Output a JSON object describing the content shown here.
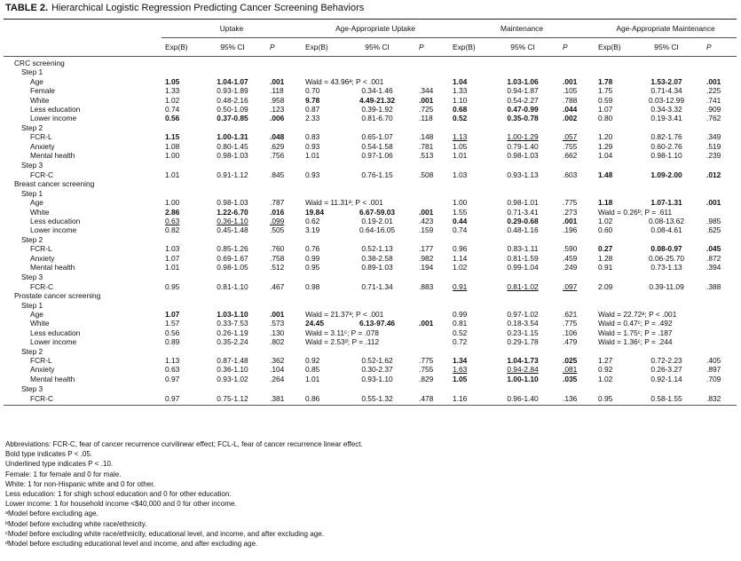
{
  "title": {
    "label": "TABLE 2.",
    "text": "Hierarchical Logistic Regression Predicting Cancer Screening Behaviors"
  },
  "groups": [
    "Uptake",
    "Age-Appropriate Uptake",
    "Maintenance",
    "Age-Appropriate Maintenance"
  ],
  "subheaders": [
    "Exp(B)",
    "95% CI",
    "P"
  ],
  "sections": [
    {
      "title": "CRC screening",
      "steps": [
        {
          "title": "Step 1",
          "rows": [
            {
              "label": "Age",
              "cells": [
                {
                  "bold": "1.05"
                },
                {
                  "bold": "1.04-1.07"
                },
                {
                  "bold": ".001"
                },
                "Wald = 43.96ᵃ; P < .001",
                null,
                null,
                {
                  "bold": "1.04"
                },
                {
                  "bold": "1.03-1.06"
                },
                {
                  "bold": ".001"
                },
                {
                  "bold": "1.78"
                },
                {
                  "bold": "1.53-2.07"
                },
                {
                  "bold": ".001"
                }
              ]
            },
            {
              "label": "Female",
              "cells": [
                "1.33",
                "0.93-1.89",
                ".118",
                "0.70",
                "0.34-1.46",
                ".344",
                "1.33",
                "0.94-1.87",
                ".105",
                "1.75",
                "0.71-4.34",
                ".225"
              ]
            },
            {
              "label": "White",
              "cells": [
                "1.02",
                "0.48-2.16",
                ".958",
                {
                  "bold": "9.78"
                },
                {
                  "bold": "4.49-21.32"
                },
                {
                  "bold": ".001"
                },
                "1.10",
                "0.54-2.27",
                ".788",
                "0.59",
                "0.03-12.99",
                ".741"
              ]
            },
            {
              "label": "Less education",
              "cells": [
                "0.74",
                "0.50-1.09",
                ".123",
                "0.87",
                "0.39-1.92",
                ".725",
                {
                  "bold": "0.68"
                },
                {
                  "bold": "0.47-0.99"
                },
                {
                  "bold": ".044"
                },
                "1.07",
                "0.34-3.32",
                ".909"
              ]
            },
            {
              "label": "Lower income",
              "cells": [
                {
                  "bold": "0.56"
                },
                {
                  "bold": "0.37-0.85"
                },
                {
                  "bold": ".006"
                },
                "2.33",
                "0.81-6.70",
                ".118",
                {
                  "bold": "0.52"
                },
                {
                  "bold": "0.35-0.78"
                },
                {
                  "bold": ".002"
                },
                "0.80",
                "0.19-3.41",
                ".762"
              ]
            }
          ]
        },
        {
          "title": "Step 2",
          "rows": [
            {
              "label": "FCR-L",
              "cells": [
                {
                  "bold": "1.15"
                },
                {
                  "bold": "1.00-1.31"
                },
                {
                  "bold": ".048"
                },
                "0.83",
                "0.65-1.07",
                ".148",
                {
                  "underline": "1.13"
                },
                {
                  "underline": "1.00-1.29"
                },
                {
                  "underline": ".057"
                },
                "1.20",
                "0.82-1.76",
                ".349"
              ]
            },
            {
              "label": "Anxiety",
              "cells": [
                "1.08",
                "0.80-1.45",
                ".629",
                "0.93",
                "0.54-1.58",
                ".781",
                "1.05",
                "0.79-1.40",
                ".755",
                "1.29",
                "0.60-2.76",
                ".519"
              ]
            },
            {
              "label": "Mental health",
              "cells": [
                "1.00",
                "0.98-1.03",
                ".756",
                "1.01",
                "0.97-1.06",
                ".513",
                "1.01",
                "0.98-1.03",
                ".662",
                "1.04",
                "0.98-1.10",
                ".239"
              ]
            }
          ]
        },
        {
          "title": "Step 3",
          "rows": [
            {
              "label": "FCR-C",
              "cells": [
                "1.01",
                "0.91-1.12",
                ".845",
                "0.93",
                "0.76-1.15",
                ".508",
                "1.03",
                "0.93-1.13",
                ".603",
                {
                  "bold": "1.48"
                },
                {
                  "bold": "1.09-2.00"
                },
                {
                  "bold": ".012"
                }
              ]
            }
          ]
        }
      ]
    },
    {
      "title": "Breast cancer screening",
      "steps": [
        {
          "title": "Step 1",
          "rows": [
            {
              "label": "Age",
              "cells": [
                "1.00",
                "0.98-1.03",
                ".787",
                "Wald = 11.31ᵃ; P < .001",
                null,
                null,
                "1.00",
                "0.98-1.01",
                ".775",
                {
                  "bold": "1.18"
                },
                {
                  "bold": "1.07-1.31"
                },
                {
                  "bold": ".001"
                }
              ]
            },
            {
              "label": "White",
              "cells": [
                {
                  "bold": "2.86"
                },
                {
                  "bold": "1.22-6.70"
                },
                {
                  "bold": ".016"
                },
                {
                  "bold": "19.84"
                },
                {
                  "bold": "6.67-59.03"
                },
                {
                  "bold": ".001"
                },
                "1.55",
                "0.71-3.41",
                ".273",
                "Wald = 0.26ᵇ; P = .611",
                null,
                null
              ]
            },
            {
              "label": "Less education",
              "cells": [
                {
                  "underline": "0.63"
                },
                {
                  "underline": "0.36-1.10"
                },
                {
                  "underline": ".099"
                },
                "0.62",
                "0.19-2.01",
                ".423",
                {
                  "bold": "0.44"
                },
                {
                  "bold": "0.29-0.68"
                },
                {
                  "bold": ".001"
                },
                "1.02",
                "0.08-13.62",
                ".985"
              ]
            },
            {
              "label": "Lower income",
              "cells": [
                "0.82",
                "0.45-1.48",
                ".505",
                "3.19",
                "0.64-16.05",
                ".159",
                "0.74",
                "0.48-1.16",
                ".196",
                "0.60",
                "0.08-4.61",
                ".625"
              ]
            }
          ]
        },
        {
          "title": "Step 2",
          "rows": [
            {
              "label": "FCR-L",
              "cells": [
                "1.03",
                "0.85-1.26",
                ".760",
                "0.76",
                "0.52-1.13",
                ".177",
                "0.96",
                "0.83-1.11",
                ".590",
                {
                  "bold": "0.27"
                },
                {
                  "bold": "0.08-0.97"
                },
                {
                  "bold": ".045"
                }
              ]
            },
            {
              "label": "Anxiety",
              "cells": [
                "1.07",
                "0.69-1.67",
                ".758",
                "0.99",
                "0.38-2.58",
                ".982",
                "1.14",
                "0.81-1.59",
                ".459",
                "1.28",
                "0.06-25.70",
                ".872"
              ]
            },
            {
              "label": "Mental health",
              "cells": [
                "1.01",
                "0.98-1.05",
                ".512",
                "0.95",
                "0.89-1.03",
                ".194",
                "1.02",
                "0.99-1.04",
                ".249",
                "0.91",
                "0.73-1.13",
                ".394"
              ]
            }
          ]
        },
        {
          "title": "Step 3",
          "rows": [
            {
              "label": "FCR-C",
              "cells": [
                "0.95",
                "0.81-1.10",
                ".467",
                "0.98",
                "0.71-1.34",
                ".883",
                {
                  "underline": "0.91"
                },
                {
                  "underline": "0.81-1.02"
                },
                {
                  "underline": ".097"
                },
                "2.09",
                "0.39-11.09",
                ".388"
              ]
            }
          ]
        }
      ]
    },
    {
      "title": "Prostate cancer screening",
      "steps": [
        {
          "title": "Step 1",
          "rows": [
            {
              "label": "Age",
              "cells": [
                {
                  "bold": "1.07"
                },
                {
                  "bold": "1.03-1.10"
                },
                {
                  "bold": ".001"
                },
                "Wald = 21.37ᵃ; P < .001",
                null,
                null,
                "0.99",
                "0.97-1.02",
                ".621",
                "Wald = 22.72ᵃ; P < .001",
                null,
                null
              ]
            },
            {
              "label": "White",
              "cells": [
                "1.57",
                "0.33-7.53",
                ".573",
                {
                  "bold": "24.45"
                },
                {
                  "bold": "6.13-97.46"
                },
                {
                  "bold": ".001"
                },
                "0.81",
                "0.18-3.54",
                ".775",
                "Wald = 0.47ᶜ; P = .492",
                null,
                null
              ]
            },
            {
              "label": "Less education",
              "cells": [
                "0.56",
                "0.26-1.19",
                ".130",
                "Wald = 3.11ᶜ; P = .078",
                null,
                null,
                "0.52",
                "0.23-1.15",
                ".106",
                "Wald = 1.75ᶜ; P = .187",
                null,
                null
              ]
            },
            {
              "label": "Lower income",
              "cells": [
                "0.89",
                "0.35-2.24",
                ".802",
                "Wald = 2.53ᵈ; P = .112",
                null,
                null,
                "0.72",
                "0.29-1.78",
                ".479",
                "Wald = 1.36ᶜ; P = .244",
                null,
                null
              ]
            }
          ]
        },
        {
          "title": "Step 2",
          "rows": [
            {
              "label": "FCR-L",
              "cells": [
                "1.13",
                "0.87-1.48",
                ".362",
                "0.92",
                "0.52-1.62",
                ".775",
                {
                  "bold": "1.34"
                },
                {
                  "bold": "1.04-1.73"
                },
                {
                  "bold": ".025"
                },
                "1.27",
                "0.72-2.23",
                ".405"
              ]
            },
            {
              "label": "Anxiety",
              "cells": [
                "0.63",
                "0.36-1.10",
                ".104",
                "0.85",
                "0.30-2.37",
                ".755",
                {
                  "underline": "1.63"
                },
                {
                  "underline": "0.94-2.84"
                },
                {
                  "underline": ".081"
                },
                "0.92",
                "0.26-3.27",
                ".897"
              ]
            },
            {
              "label": "Mental health",
              "cells": [
                "0.97",
                "0.93-1.02",
                ".264",
                "1.01",
                "0.93-1.10",
                ".829",
                {
                  "bold": "1.05"
                },
                {
                  "bold": "1.00-1.10"
                },
                {
                  "bold": ".035"
                },
                "1.02",
                "0.92-1.14",
                ".709"
              ]
            }
          ]
        },
        {
          "title": "Step 3",
          "rows": [
            {
              "label": "FCR-C",
              "cells": [
                "0.97",
                "0.75-1.12",
                ".381",
                "0.86",
                "0.55-1.32",
                ".478",
                "1.16",
                "0.96-1.40",
                ".136",
                "0.95",
                "0.58-1.55",
                ".832"
              ]
            }
          ]
        }
      ]
    }
  ],
  "footnotes": [
    "Abbreviations: FCR-C, fear of cancer recurrence curvilinear effect; FCL-L, fear of cancer recurrence linear effect.",
    "Bold type indicates P < .05.",
    "Underlined type indicates P < .10.",
    "Female: 1 for female and 0 for male.",
    "White: 1 for non-Hispanic white and 0 for other.",
    "Less education: 1 for ≤high school education and 0 for other education.",
    "Lower income: 1 for household income <$40,000 and 0 for other income.",
    "ᵃModel before excluding age.",
    "ᵇModel before excluding white race/ethnicity.",
    "ᶜModel before excluding white race/ethnicity, educational level, and income, and after excluding age.",
    "ᵈModel before excluding educational level and income, and after excluding age."
  ]
}
